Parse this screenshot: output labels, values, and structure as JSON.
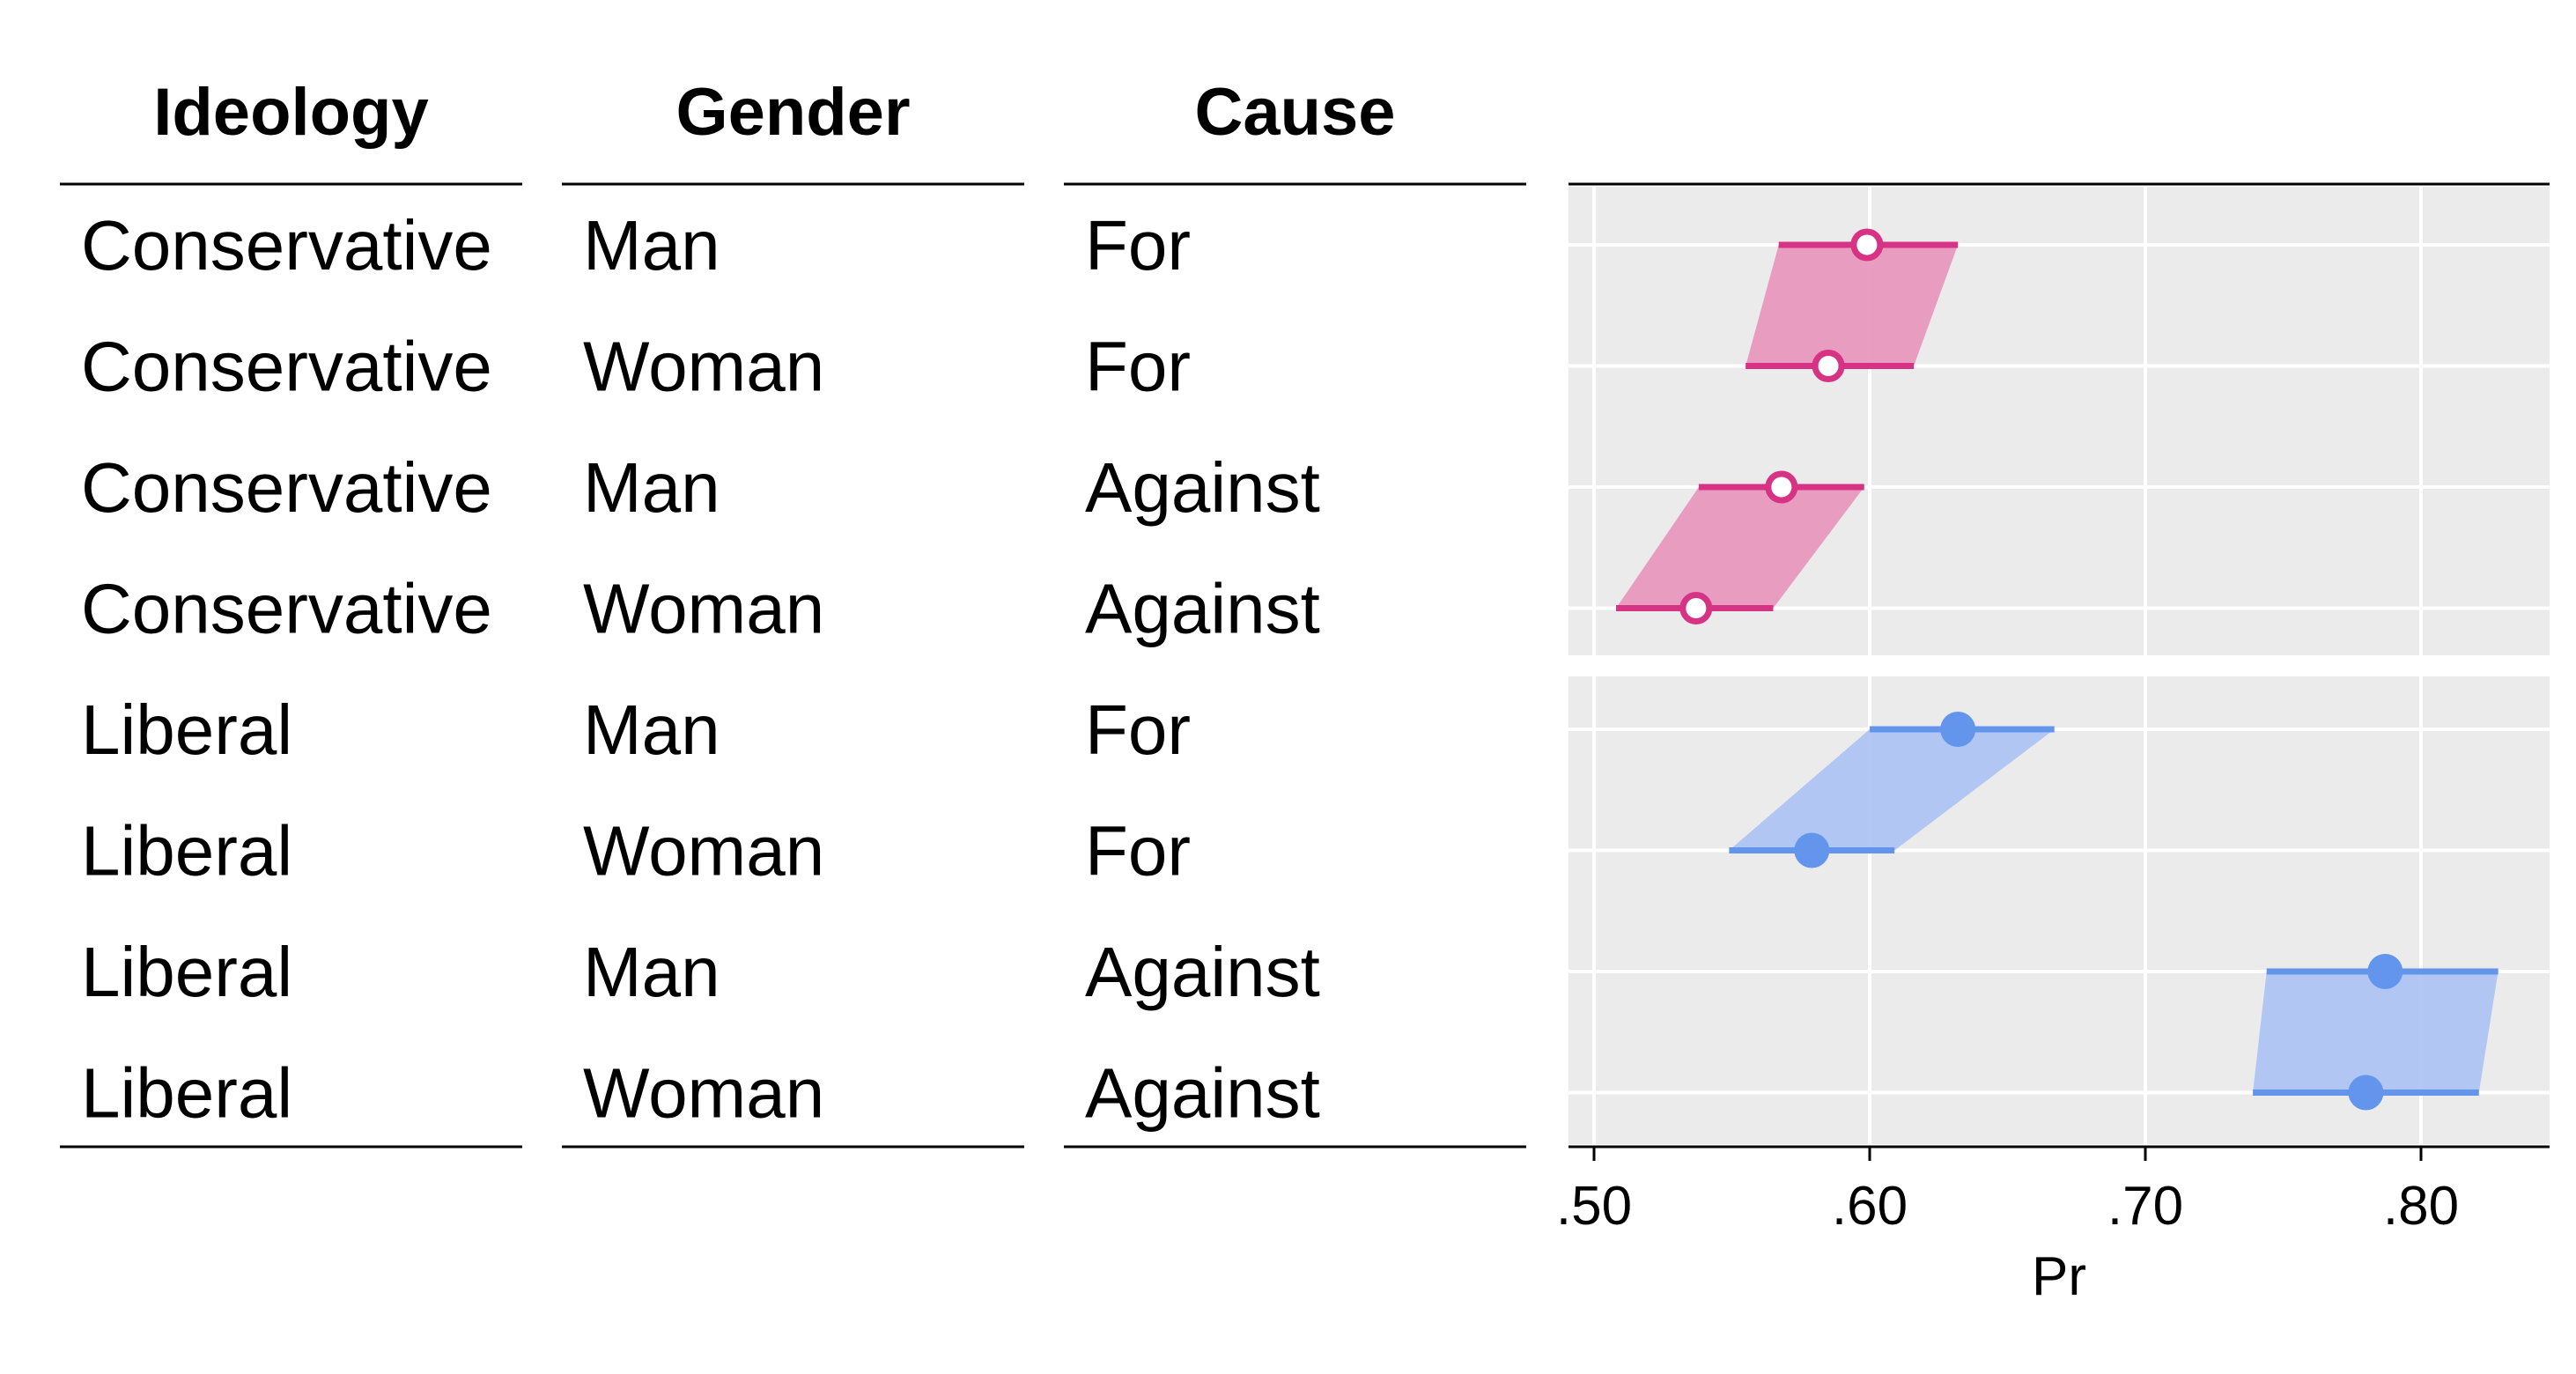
{
  "table": {
    "headers": [
      "Ideology",
      "Gender",
      "Cause"
    ],
    "rows": [
      [
        "Conservative",
        "Man",
        "For"
      ],
      [
        "Conservative",
        "Woman",
        "For"
      ],
      [
        "Conservative",
        "Man",
        "Against"
      ],
      [
        "Conservative",
        "Woman",
        "Against"
      ],
      [
        "Liberal",
        "Man",
        "For"
      ],
      [
        "Liberal",
        "Woman",
        "For"
      ],
      [
        "Liberal",
        "Man",
        "Against"
      ],
      [
        "Liberal",
        "Woman",
        "Against"
      ]
    ]
  },
  "chart_data": {
    "type": "scatter",
    "xlabel": "Pr",
    "xlim": [
      0.49,
      0.845
    ],
    "xticks": [
      0.5,
      0.6,
      0.7,
      0.8
    ],
    "xtick_labels": [
      ".50",
      ".60",
      ".70",
      ".80"
    ],
    "grid": true,
    "panels": [
      {
        "group": "Conservative",
        "color": "#d63384",
        "fill": "#e899be",
        "marker": "open-circle",
        "points": [
          {
            "row": "Conservative / Man / For",
            "est": 0.599,
            "lo": 0.567,
            "hi": 0.632
          },
          {
            "row": "Conservative / Woman / For",
            "est": 0.585,
            "lo": 0.555,
            "hi": 0.616
          },
          {
            "row": "Conservative / Man / Against",
            "est": 0.568,
            "lo": 0.538,
            "hi": 0.598
          },
          {
            "row": "Conservative / Woman / Against",
            "est": 0.537,
            "lo": 0.508,
            "hi": 0.565
          }
        ]
      },
      {
        "group": "Liberal",
        "color": "#6495ed",
        "fill": "#aec4f2",
        "marker": "filled-circle",
        "points": [
          {
            "row": "Liberal / Man / For",
            "est": 0.632,
            "lo": 0.6,
            "hi": 0.667
          },
          {
            "row": "Liberal / Woman / For",
            "est": 0.579,
            "lo": 0.549,
            "hi": 0.609
          },
          {
            "row": "Liberal / Man / Against",
            "est": 0.787,
            "lo": 0.744,
            "hi": 0.828
          },
          {
            "row": "Liberal / Woman / Against",
            "est": 0.78,
            "lo": 0.739,
            "hi": 0.821
          }
        ]
      }
    ]
  }
}
